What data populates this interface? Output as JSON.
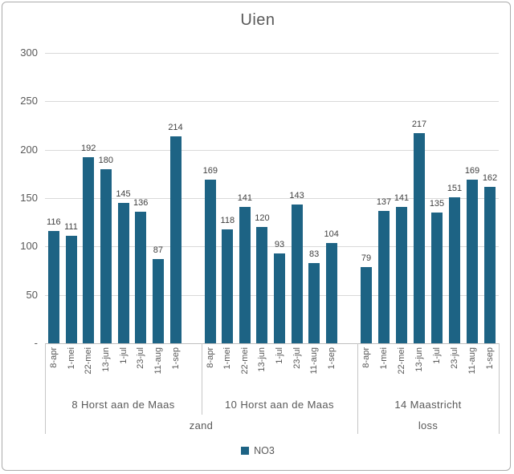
{
  "chart_data": {
    "type": "bar",
    "title": "Uien",
    "bar_color": "#1d6384",
    "text_color": "#595959",
    "data_label_color": "#404040",
    "gridline_color": "#d9d9d9",
    "ylim": [
      0,
      300
    ],
    "yticks": [
      {
        "value": 0,
        "label": "-"
      },
      {
        "value": 50,
        "label": "50"
      },
      {
        "value": 100,
        "label": "100"
      },
      {
        "value": 150,
        "label": "150"
      },
      {
        "value": 200,
        "label": "200"
      },
      {
        "value": 250,
        "label": "250"
      },
      {
        "value": 300,
        "label": "300"
      }
    ],
    "categories": [
      "8-apr",
      "1-mei",
      "22-mei",
      "13-jun",
      "1-jul",
      "23-jul",
      "11-aug",
      "1-sep"
    ],
    "groups": [
      {
        "label": "8 Horst aan de Maas",
        "soil": "zand",
        "values": [
          116,
          111,
          192,
          180,
          145,
          136,
          87,
          214
        ]
      },
      {
        "label": "10 Horst aan de Maas",
        "soil": "zand",
        "values": [
          169,
          118,
          141,
          120,
          93,
          143,
          83,
          104
        ]
      },
      {
        "label": "14 Maastricht",
        "soil": "loss",
        "values": [
          79,
          137,
          141,
          217,
          135,
          151,
          169,
          162
        ]
      }
    ],
    "soil_spans": [
      {
        "label": "zand",
        "start_group": 0,
        "end_group": 1
      },
      {
        "label": "loss",
        "start_group": 2,
        "end_group": 2
      }
    ],
    "legend": {
      "series_label": "NO3"
    },
    "grid": true,
    "legend_position": "bottom"
  }
}
